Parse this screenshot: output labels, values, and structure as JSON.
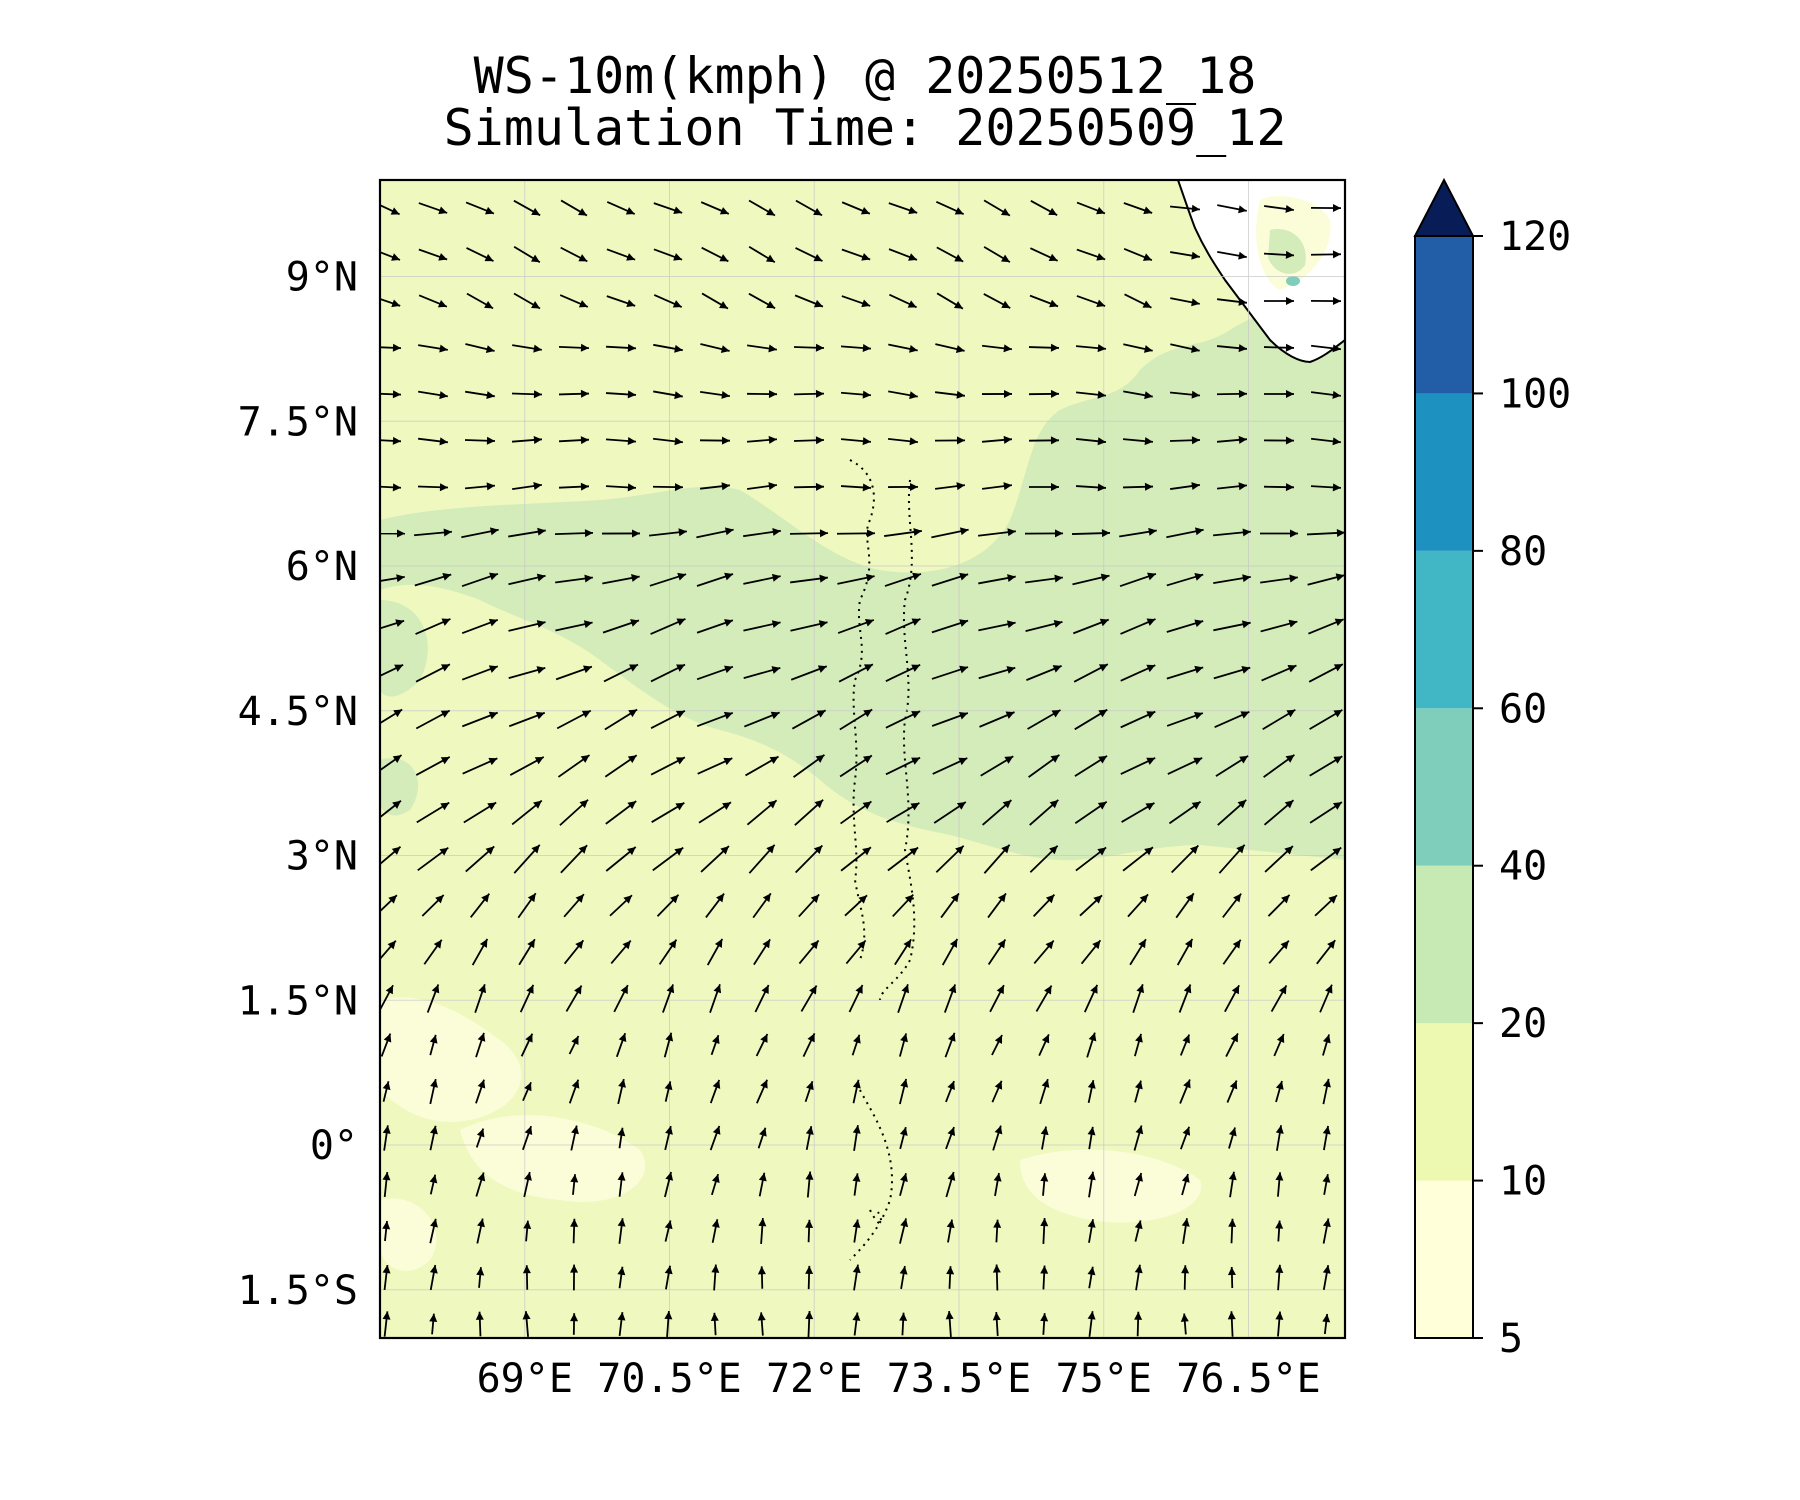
{
  "title": {
    "line1": "WS-10m(kmph) @ 20250512_18",
    "line2": "Simulation Time: 20250509_12"
  },
  "map": {
    "lat_range": [
      -2.0,
      10.0
    ],
    "lon_range": [
      67.5,
      77.5
    ],
    "lat_ticks": [
      {
        "value": 9.0,
        "label": "9°N"
      },
      {
        "value": 7.5,
        "label": "7.5°N"
      },
      {
        "value": 6.0,
        "label": "6°N"
      },
      {
        "value": 4.5,
        "label": "4.5°N"
      },
      {
        "value": 3.0,
        "label": "3°N"
      },
      {
        "value": 1.5,
        "label": "1.5°N"
      },
      {
        "value": 0.0,
        "label": "0°"
      },
      {
        "value": -1.5,
        "label": "1.5°S"
      }
    ],
    "lon_ticks": [
      {
        "value": 69.0,
        "label": "69°E"
      },
      {
        "value": 70.5,
        "label": "70.5°E"
      },
      {
        "value": 72.0,
        "label": "72°E"
      },
      {
        "value": 73.5,
        "label": "73.5°E"
      },
      {
        "value": 75.0,
        "label": "75°E"
      },
      {
        "value": 76.5,
        "label": "76.5°E"
      }
    ],
    "grid": true
  },
  "colorbar": {
    "levels": [
      5,
      10,
      20,
      40,
      60,
      80,
      100,
      120
    ],
    "labels": [
      "5",
      "10",
      "20",
      "40",
      "60",
      "80",
      "100",
      "120"
    ],
    "colors": [
      "#ffffd9",
      "#edf8b1",
      "#c7e9b4",
      "#7fcdbb",
      "#41b6c4",
      "#1d91c0",
      "#225ea8",
      "#253494"
    ],
    "extend_color": "#081d58",
    "extend": "max"
  },
  "field_colors": {
    "background": "#eff8bf",
    "light": "#fbfdd8",
    "band": "#d3ecba",
    "land": "#ffffff",
    "peak": "#7fcdbb"
  }
}
